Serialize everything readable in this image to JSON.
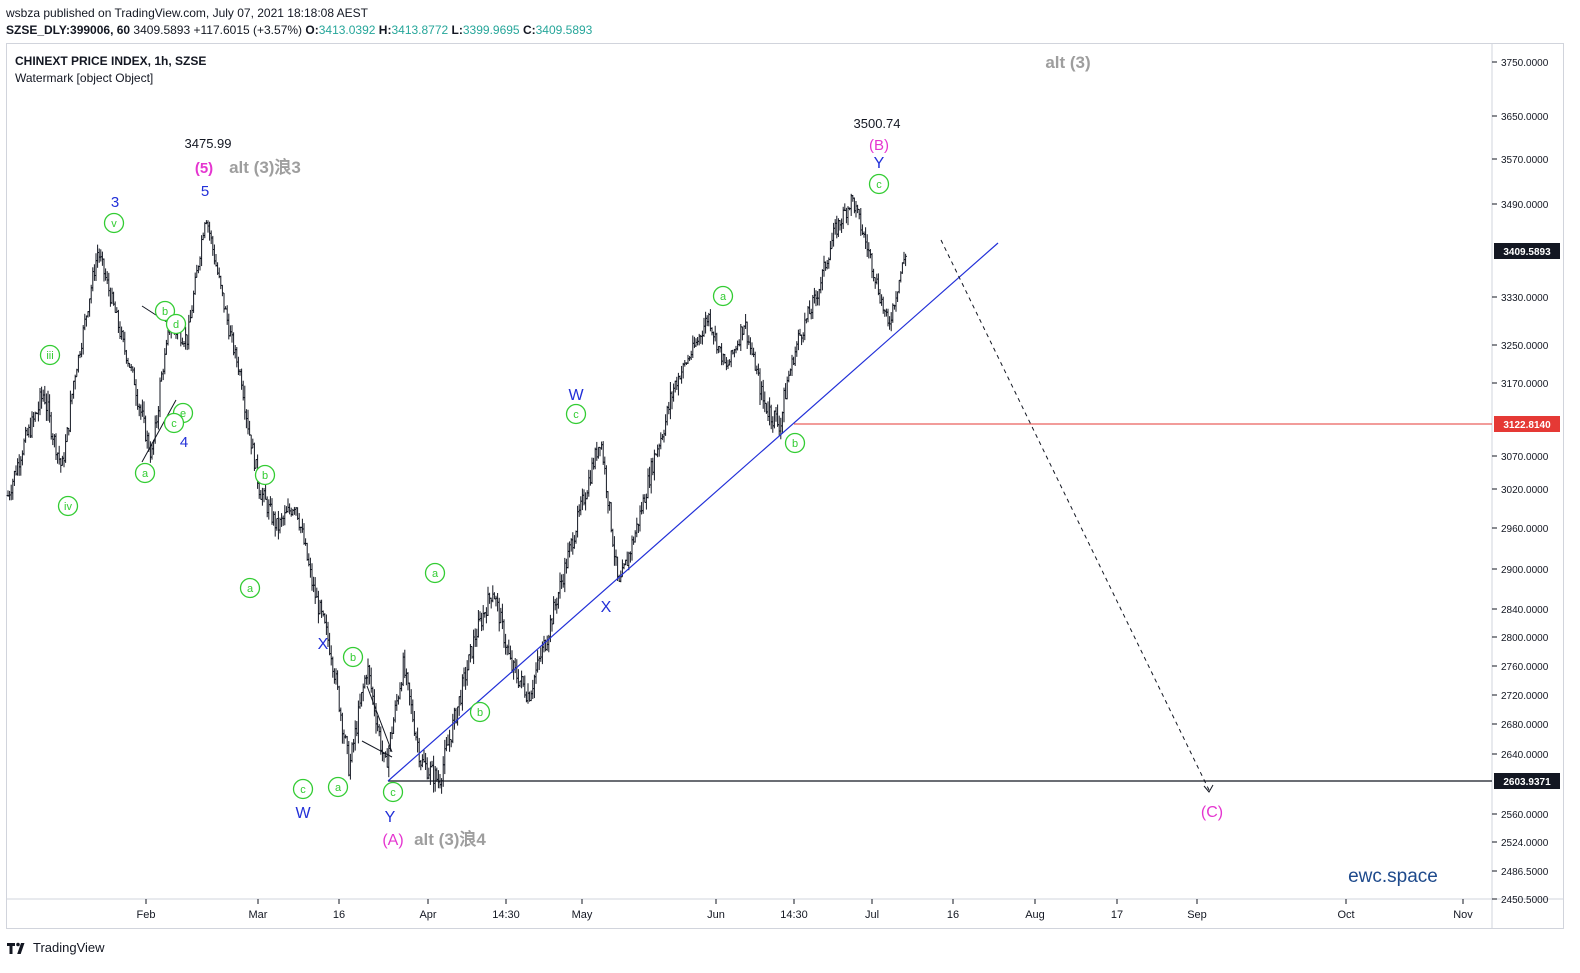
{
  "header": {
    "published": "wsbza published on TradingView.com, July 07, 2021 18:18:08 AEST",
    "symbol": "SZSE_DLY:399006, 60",
    "last": "3409.5893",
    "change": "+117.6015 (+3.57%)",
    "o_label": "O:",
    "o_value": "3413.0392",
    "h_label": "H:",
    "h_value": "3413.8772",
    "l_label": "L:",
    "l_value": "3399.9695",
    "c_label": "C:",
    "c_value": "3409.5893"
  },
  "legend": {
    "title": "CHINEXT PRICE INDEX, 1h, SZSE",
    "watermark": "Watermark [object Object]"
  },
  "footer": {
    "brand": "TradingView"
  },
  "colors": {
    "candle": "#131722",
    "trendline": "#2230d8",
    "red_line": "#e53935",
    "wave_green": "#33cc33",
    "wave_blue": "#2230d8",
    "wave_magenta": "#e535d0",
    "alt_gray": "#9e9e9e",
    "brand_blue": "#1e4a8c"
  },
  "chart_data": {
    "type": "candlestick",
    "title": "CHINEXT PRICE INDEX, 1h, SZSE",
    "x_ticks": [
      "Feb",
      "Mar",
      "16",
      "Apr",
      "14:30",
      "May",
      "Jun",
      "14:30",
      "Jul",
      "16",
      "Aug",
      "17",
      "Sep",
      "Oct",
      "Nov"
    ],
    "y_ticks": [
      "3750.0000",
      "3650.0000",
      "3570.0000",
      "3490.0000",
      "3330.0000",
      "3250.0000",
      "3170.0000",
      "3070.0000",
      "3020.0000",
      "2960.0000",
      "2900.0000",
      "2840.0000",
      "2800.0000",
      "2760.0000",
      "2720.0000",
      "2680.0000",
      "2640.0000",
      "2560.0000",
      "2524.0000",
      "2486.5000",
      "2450.5000"
    ],
    "price_tags": [
      {
        "label": "3409.5893",
        "value": 3409.5893,
        "color": "#131722"
      },
      {
        "label": "3122.8140",
        "value": 3122.814,
        "color": "#e53935"
      },
      {
        "label": "2603.9371",
        "value": 2603.9371,
        "color": "#131722"
      }
    ],
    "horizontal_lines": [
      {
        "value": 3122.814,
        "from": "Jun 14:30",
        "color": "#e53935"
      },
      {
        "value": 2603.9371,
        "from": "Mar 24",
        "color": "#131722"
      }
    ],
    "trendline": {
      "from": [
        "Mar 24",
        2603.94
      ],
      "to": [
        "Jul 16",
        3415
      ]
    },
    "projection": {
      "from": [
        "Jul 12",
        3420
      ],
      "to": [
        "Sep 01",
        2590
      ],
      "style": "dashed"
    },
    "price_path": [
      3010,
      3100,
      3160,
      3050,
      3240,
      3410,
      3300,
      3180,
      3070,
      3280,
      3260,
      3476,
      3320,
      3180,
      3020,
      2960,
      3000,
      2870,
      2780,
      2620,
      2760,
      2620,
      2760,
      2630,
      2604,
      2700,
      2800,
      2870,
      2760,
      2720,
      2800,
      2900,
      3000,
      3100,
      2870,
      2960,
      3070,
      3160,
      3230,
      3300,
      3200,
      3290,
      3150,
      3120,
      3260,
      3330,
      3440,
      3500,
      3400,
      3280,
      3409
    ],
    "annotations": [
      {
        "text": "3475.99",
        "kind": "price"
      },
      {
        "text": "3500.74",
        "kind": "price"
      },
      {
        "text": "alt (3)",
        "kind": "gray"
      },
      {
        "text": "alt (3)浪3",
        "kind": "gray"
      },
      {
        "text": "alt (3)浪4",
        "kind": "gray"
      },
      {
        "text": "(5)",
        "kind": "magenta"
      },
      {
        "text": "(A)",
        "kind": "magenta"
      },
      {
        "text": "(B)",
        "kind": "magenta"
      },
      {
        "text": "(C)",
        "kind": "magenta"
      },
      {
        "text": "3",
        "kind": "blue"
      },
      {
        "text": "5",
        "kind": "blue"
      },
      {
        "text": "4",
        "kind": "blue"
      },
      {
        "text": "W",
        "kind": "blue"
      },
      {
        "text": "X",
        "kind": "blue"
      },
      {
        "text": "Y",
        "kind": "blue"
      },
      {
        "text": "W",
        "kind": "blue"
      },
      {
        "text": "X",
        "kind": "blue"
      },
      {
        "text": "Y",
        "kind": "blue"
      },
      {
        "text": "iii",
        "kind": "green"
      },
      {
        "text": "iv",
        "kind": "green"
      },
      {
        "text": "v",
        "kind": "green"
      },
      {
        "text": "a",
        "kind": "green"
      },
      {
        "text": "b",
        "kind": "green"
      },
      {
        "text": "c",
        "kind": "green"
      },
      {
        "text": "d",
        "kind": "green"
      },
      {
        "text": "e",
        "kind": "green"
      }
    ],
    "watermark_text": "ewc.space"
  }
}
